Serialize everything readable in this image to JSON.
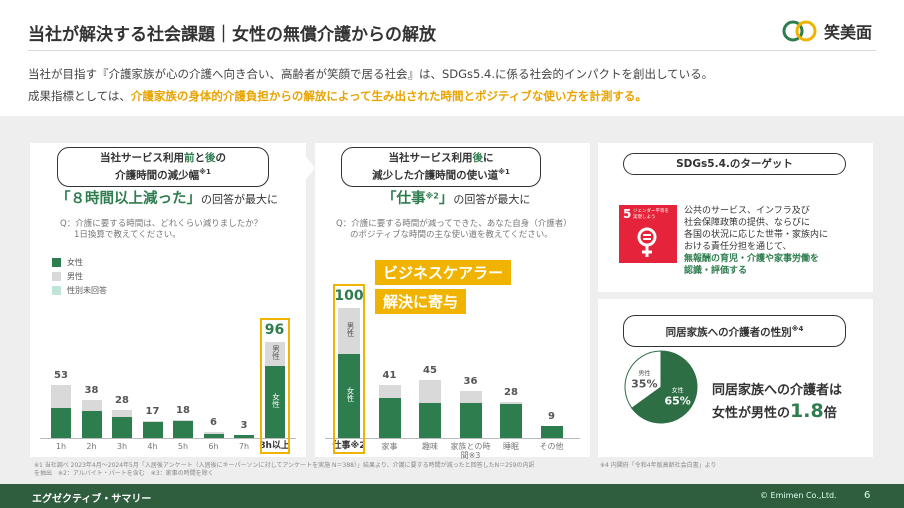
{
  "header": {
    "title": "当社が解決する社会課題｜女性の無償介護からの解放",
    "logo_text": "笑美面"
  },
  "intro": {
    "line1": "当社が目指す『介護家族が心の介護へ向き合い、高齢者が笑顔で居る社会』は、SDGs5.4.に係る社会的インパクトを創出している。",
    "line2_prefix": "成果指標としては、",
    "line2_highlight": "介護家族の身体的介護負担からの解放によって生み出された時間とポジティブな使い方を計測する。"
  },
  "panel1": {
    "box_line1_a": "当社サービス利用",
    "box_line1_b": "前",
    "box_line1_c": "と",
    "box_line1_d": "後",
    "box_line1_e": "の",
    "box_line2": "介護時間の減少幅",
    "box_note": "※1",
    "headline_big": "「８時間以上減った」",
    "headline_rest": "の回答が最大に",
    "question_line1": "Q：介護に要する時間は、どれくらい減りましたか？",
    "question_line2": "1日換算で教えてください。",
    "legend": [
      "女性",
      "男性",
      "性別未回答"
    ]
  },
  "panel2": {
    "box_line1_a": "当社サービス利用",
    "box_line1_b": "後",
    "box_line1_c": "に",
    "box_line2": "減少した介護時間の使い道",
    "box_note": "※1",
    "headline_big": "「仕事",
    "headline_sup": "※2",
    "headline_big2": "」",
    "headline_rest": "の回答が最大に",
    "question_line1": "Q：介護に要する時間が減ってできた、あなた自身（介護者）",
    "question_line2": "のポジティブな時間の主な使い道を教えてください。",
    "callout1": "ビジネスケアラー",
    "callout2": "解決に寄与"
  },
  "panel3": {
    "box_label": "SDGs5.4.のターゲット",
    "sdg_number": "5",
    "sdg_name": "ジェンダー平等を実現しよう",
    "text_lines": [
      "公共のサービス、インフラ及び",
      "社会保障政策の提供、ならびに",
      "各国の状況に応じた世帯・家族内に",
      "おける責任分担を通じて、"
    ],
    "text_highlight": [
      "無報酬の育児・介護や家事労働を",
      "認識・評価する"
    ]
  },
  "panel4": {
    "box_label": "同居家族への介護者の性別",
    "box_note": "※4",
    "statement_line1": "同居家族への介護者は",
    "statement_prefix": "女性が男性の",
    "statement_big": "1.8",
    "statement_suffix": "倍"
  },
  "chart_data": [
    {
      "type": "bar",
      "categories": [
        "1h",
        "2h",
        "3h",
        "4h",
        "5h",
        "6h",
        "7h",
        "8h以上"
      ],
      "totals": [
        53,
        38,
        28,
        17,
        18,
        6,
        3,
        96
      ],
      "series": [
        {
          "name": "女性",
          "values": [
            30,
            27,
            21,
            16,
            17,
            4,
            3,
            72
          ]
        },
        {
          "name": "男性",
          "values": [
            23,
            11,
            7,
            1,
            1,
            2,
            0,
            24
          ]
        },
        {
          "name": "性別未回答",
          "values": [
            0,
            0,
            0,
            0,
            0,
            0,
            0,
            0
          ]
        }
      ],
      "highlight_index": 7,
      "segment_labels": {
        "female": "女性",
        "male": "男性"
      },
      "colors": {
        "female": "#2e7d4f",
        "male": "#d9d9d9",
        "unknown": "#bfe5d8"
      }
    },
    {
      "type": "bar",
      "categories": [
        "仕事※2",
        "家事",
        "趣味",
        "家族との時間※3",
        "睡眠",
        "その他"
      ],
      "totals": [
        100,
        41,
        45,
        36,
        28,
        9
      ],
      "series": [
        {
          "name": "女性",
          "values": [
            65,
            31,
            27,
            27,
            26,
            9
          ]
        },
        {
          "name": "男性",
          "values": [
            35,
            10,
            18,
            9,
            2,
            0
          ]
        }
      ],
      "highlight_index": 0,
      "segment_labels": {
        "female": "女性",
        "male": "男性"
      }
    },
    {
      "type": "pie",
      "labels": [
        "女性",
        "男性"
      ],
      "values": [
        65,
        35
      ],
      "display": [
        "65%",
        "35%"
      ],
      "colors": [
        "#2e6e45",
        "#ffffff"
      ]
    }
  ],
  "footnotes": {
    "left_line1": "※1 当社調べ 2023年4月〜2024年5月「入居後アンケート（入居後にキーパーソンに対してアンケートを実施 N＝388）」結果より、介護に要する時間が減ったと回答したN＝259の内訳",
    "left_line2": "を抽出　※2：アルバイト・パートを含む　※3：家事の時間を除く",
    "right": "※4 内閣府「令和4年版高齢社会白書」より"
  },
  "footer": {
    "label": "エグゼクティブ・サマリー",
    "copyright": "© Emimen Co.,Ltd.",
    "page": "6"
  }
}
